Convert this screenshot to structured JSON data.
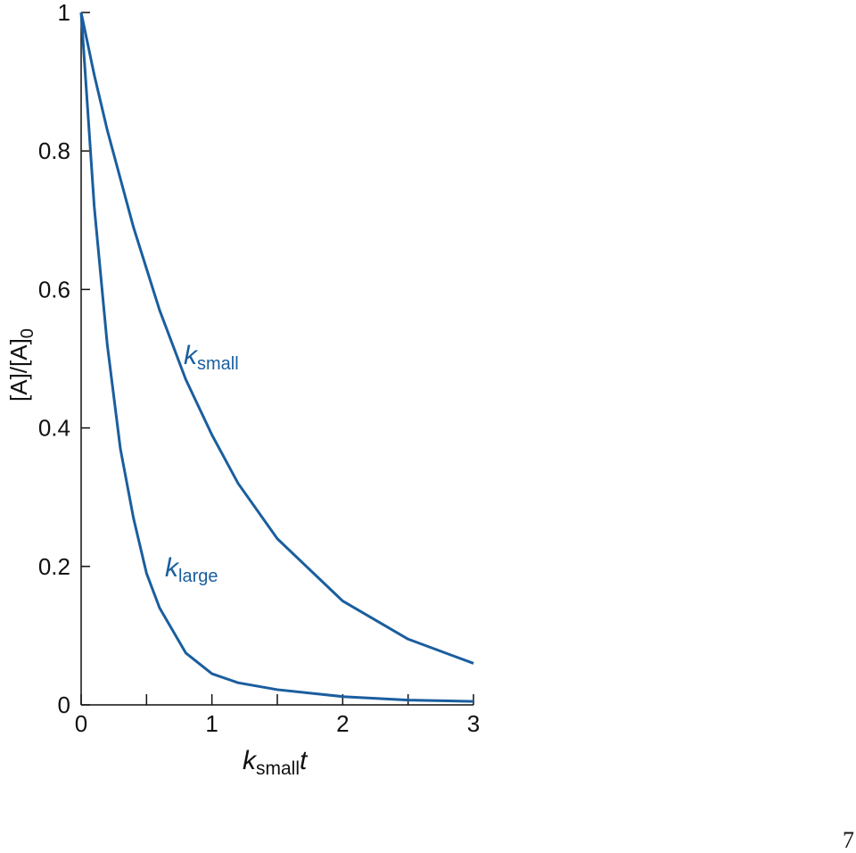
{
  "chart_data": {
    "type": "line",
    "x": [
      0,
      0.1,
      0.2,
      0.3,
      0.4,
      0.5,
      0.6,
      0.8,
      1,
      1.2,
      1.5,
      2,
      2.5,
      3
    ],
    "series": [
      {
        "name": "k",
        "subscript": "small",
        "color": "#1a5e9e",
        "values": [
          1,
          0.91,
          0.83,
          0.76,
          0.69,
          0.63,
          0.57,
          0.47,
          0.39,
          0.32,
          0.24,
          0.15,
          0.095,
          0.06
        ]
      },
      {
        "name": "k",
        "subscript": "large",
        "color": "#1a5e9e",
        "values": [
          1,
          0.72,
          0.52,
          0.37,
          0.27,
          0.19,
          0.14,
          0.075,
          0.045,
          0.032,
          0.022,
          0.012,
          0.007,
          0.005
        ]
      }
    ],
    "xlim": [
      0,
      3
    ],
    "xticks": [
      0,
      1,
      2,
      3
    ],
    "xminorticks": [
      0.5,
      1.5,
      2.5
    ],
    "ylim": [
      0,
      1
    ],
    "yticks": [
      0,
      0.2,
      0.4,
      0.6,
      0.8,
      1
    ],
    "xlabel": {
      "symbol": "k",
      "subscript": "small",
      "variable": "t"
    },
    "ylabel": {
      "text": "[A]/[A]",
      "subscript": "0"
    }
  },
  "page_number": "7"
}
